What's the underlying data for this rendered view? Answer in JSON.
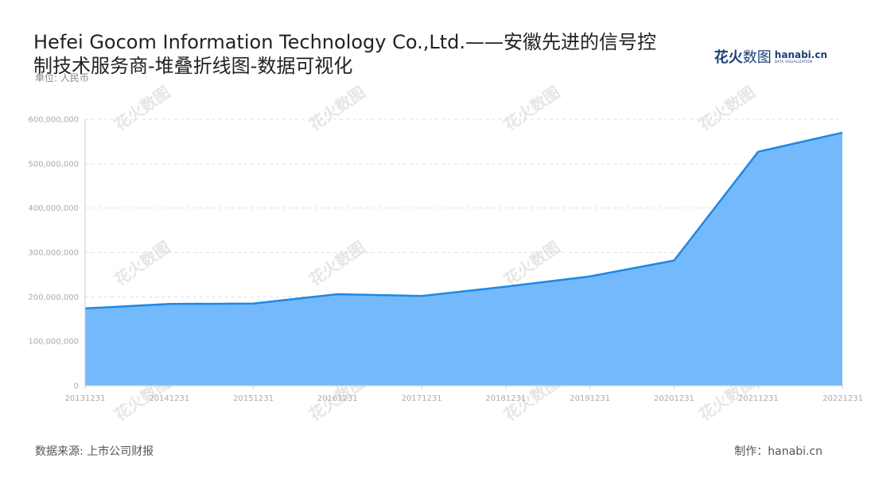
{
  "header": {
    "title": "Hefei Gocom Information Technology Co.,Ltd.——安徽先进的信号控制技术服务商-堆叠折线图-数据可视化",
    "unit": "单位: 人民币"
  },
  "logo": {
    "zh_bold": "花火",
    "zh_light": "数图",
    "en": "hanabi.cn",
    "en_sub": "DATA VISUALIZATION",
    "color": "#1c3f7a"
  },
  "footer": {
    "source": "数据来源: 上市公司财报",
    "maker": "制作：hanabi.cn"
  },
  "chart_data": {
    "type": "area",
    "categories": [
      "20131231",
      "20141231",
      "20151231",
      "20161231",
      "20171231",
      "20181231",
      "20191231",
      "20201231",
      "20211231",
      "20221231"
    ],
    "series": [
      {
        "values": [
          174000000,
          184000000,
          185000000,
          206000000,
          202000000,
          223000000,
          246000000,
          282000000,
          527000000,
          570000000
        ],
        "color": "#1e88e5",
        "fill": "#74b9fc"
      }
    ],
    "yticks": [
      "0",
      "100,000,000",
      "200,000,000",
      "300,000,000",
      "400,000,000",
      "500,000,000",
      "600,000,000"
    ],
    "ylim": [
      0,
      600000000
    ],
    "grid": true,
    "grid_style": "dashed",
    "legend": false
  }
}
